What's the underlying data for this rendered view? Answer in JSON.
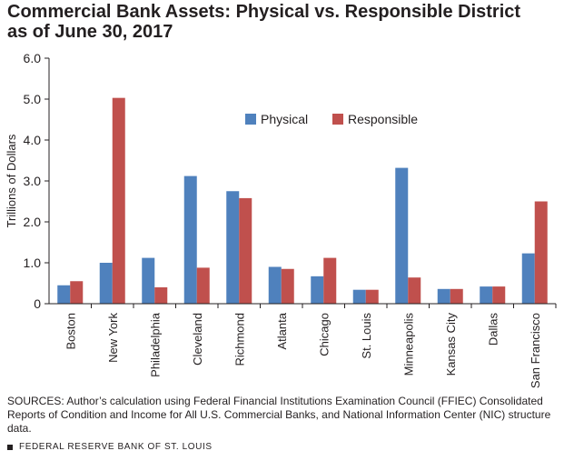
{
  "title_lines": [
    "Commercial Bank Assets: Physical vs. Responsible District",
    "as of June 30, 2017"
  ],
  "sources": "SOURCES: Author’s calculation using Federal Financial Institutions Examination Council (FFIEC) Consolidated Reports of Condition and Income for All U.S. Commercial Banks, and National Information Center (NIC) structure data.",
  "footer": "FEDERAL RESERVE BANK OF ST. LOUIS",
  "colors": {
    "physical": "#4f81bd",
    "responsible": "#c0504d",
    "axis": "#231f20",
    "grid": "#bfbfbf"
  },
  "chart_data": {
    "type": "bar",
    "title": "Commercial Bank Assets: Physical vs. Responsible District as of June 30, 2017",
    "ylabel": "Trillions of Dollars",
    "xlabel": "",
    "ylim": [
      0,
      6.0
    ],
    "yticks": [
      "0",
      "1.0",
      "2.0",
      "3.0",
      "4.0",
      "5.0",
      "6.0"
    ],
    "grid": false,
    "legend_position": "top-center",
    "categories": [
      "Boston",
      "New York",
      "Philadelphia",
      "Cleveland",
      "Richmond",
      "Atlanta",
      "Chicago",
      "St. Louis",
      "Minneapolis",
      "Kansas City",
      "Dallas",
      "San Francisco"
    ],
    "series": [
      {
        "name": "Physical",
        "values": [
          0.45,
          1.0,
          1.12,
          3.12,
          2.75,
          0.9,
          0.67,
          0.34,
          3.32,
          0.36,
          0.42,
          1.23
        ]
      },
      {
        "name": "Responsible",
        "values": [
          0.55,
          5.03,
          0.4,
          0.88,
          2.58,
          0.85,
          1.12,
          0.34,
          0.64,
          0.36,
          0.42,
          2.5
        ]
      }
    ]
  }
}
